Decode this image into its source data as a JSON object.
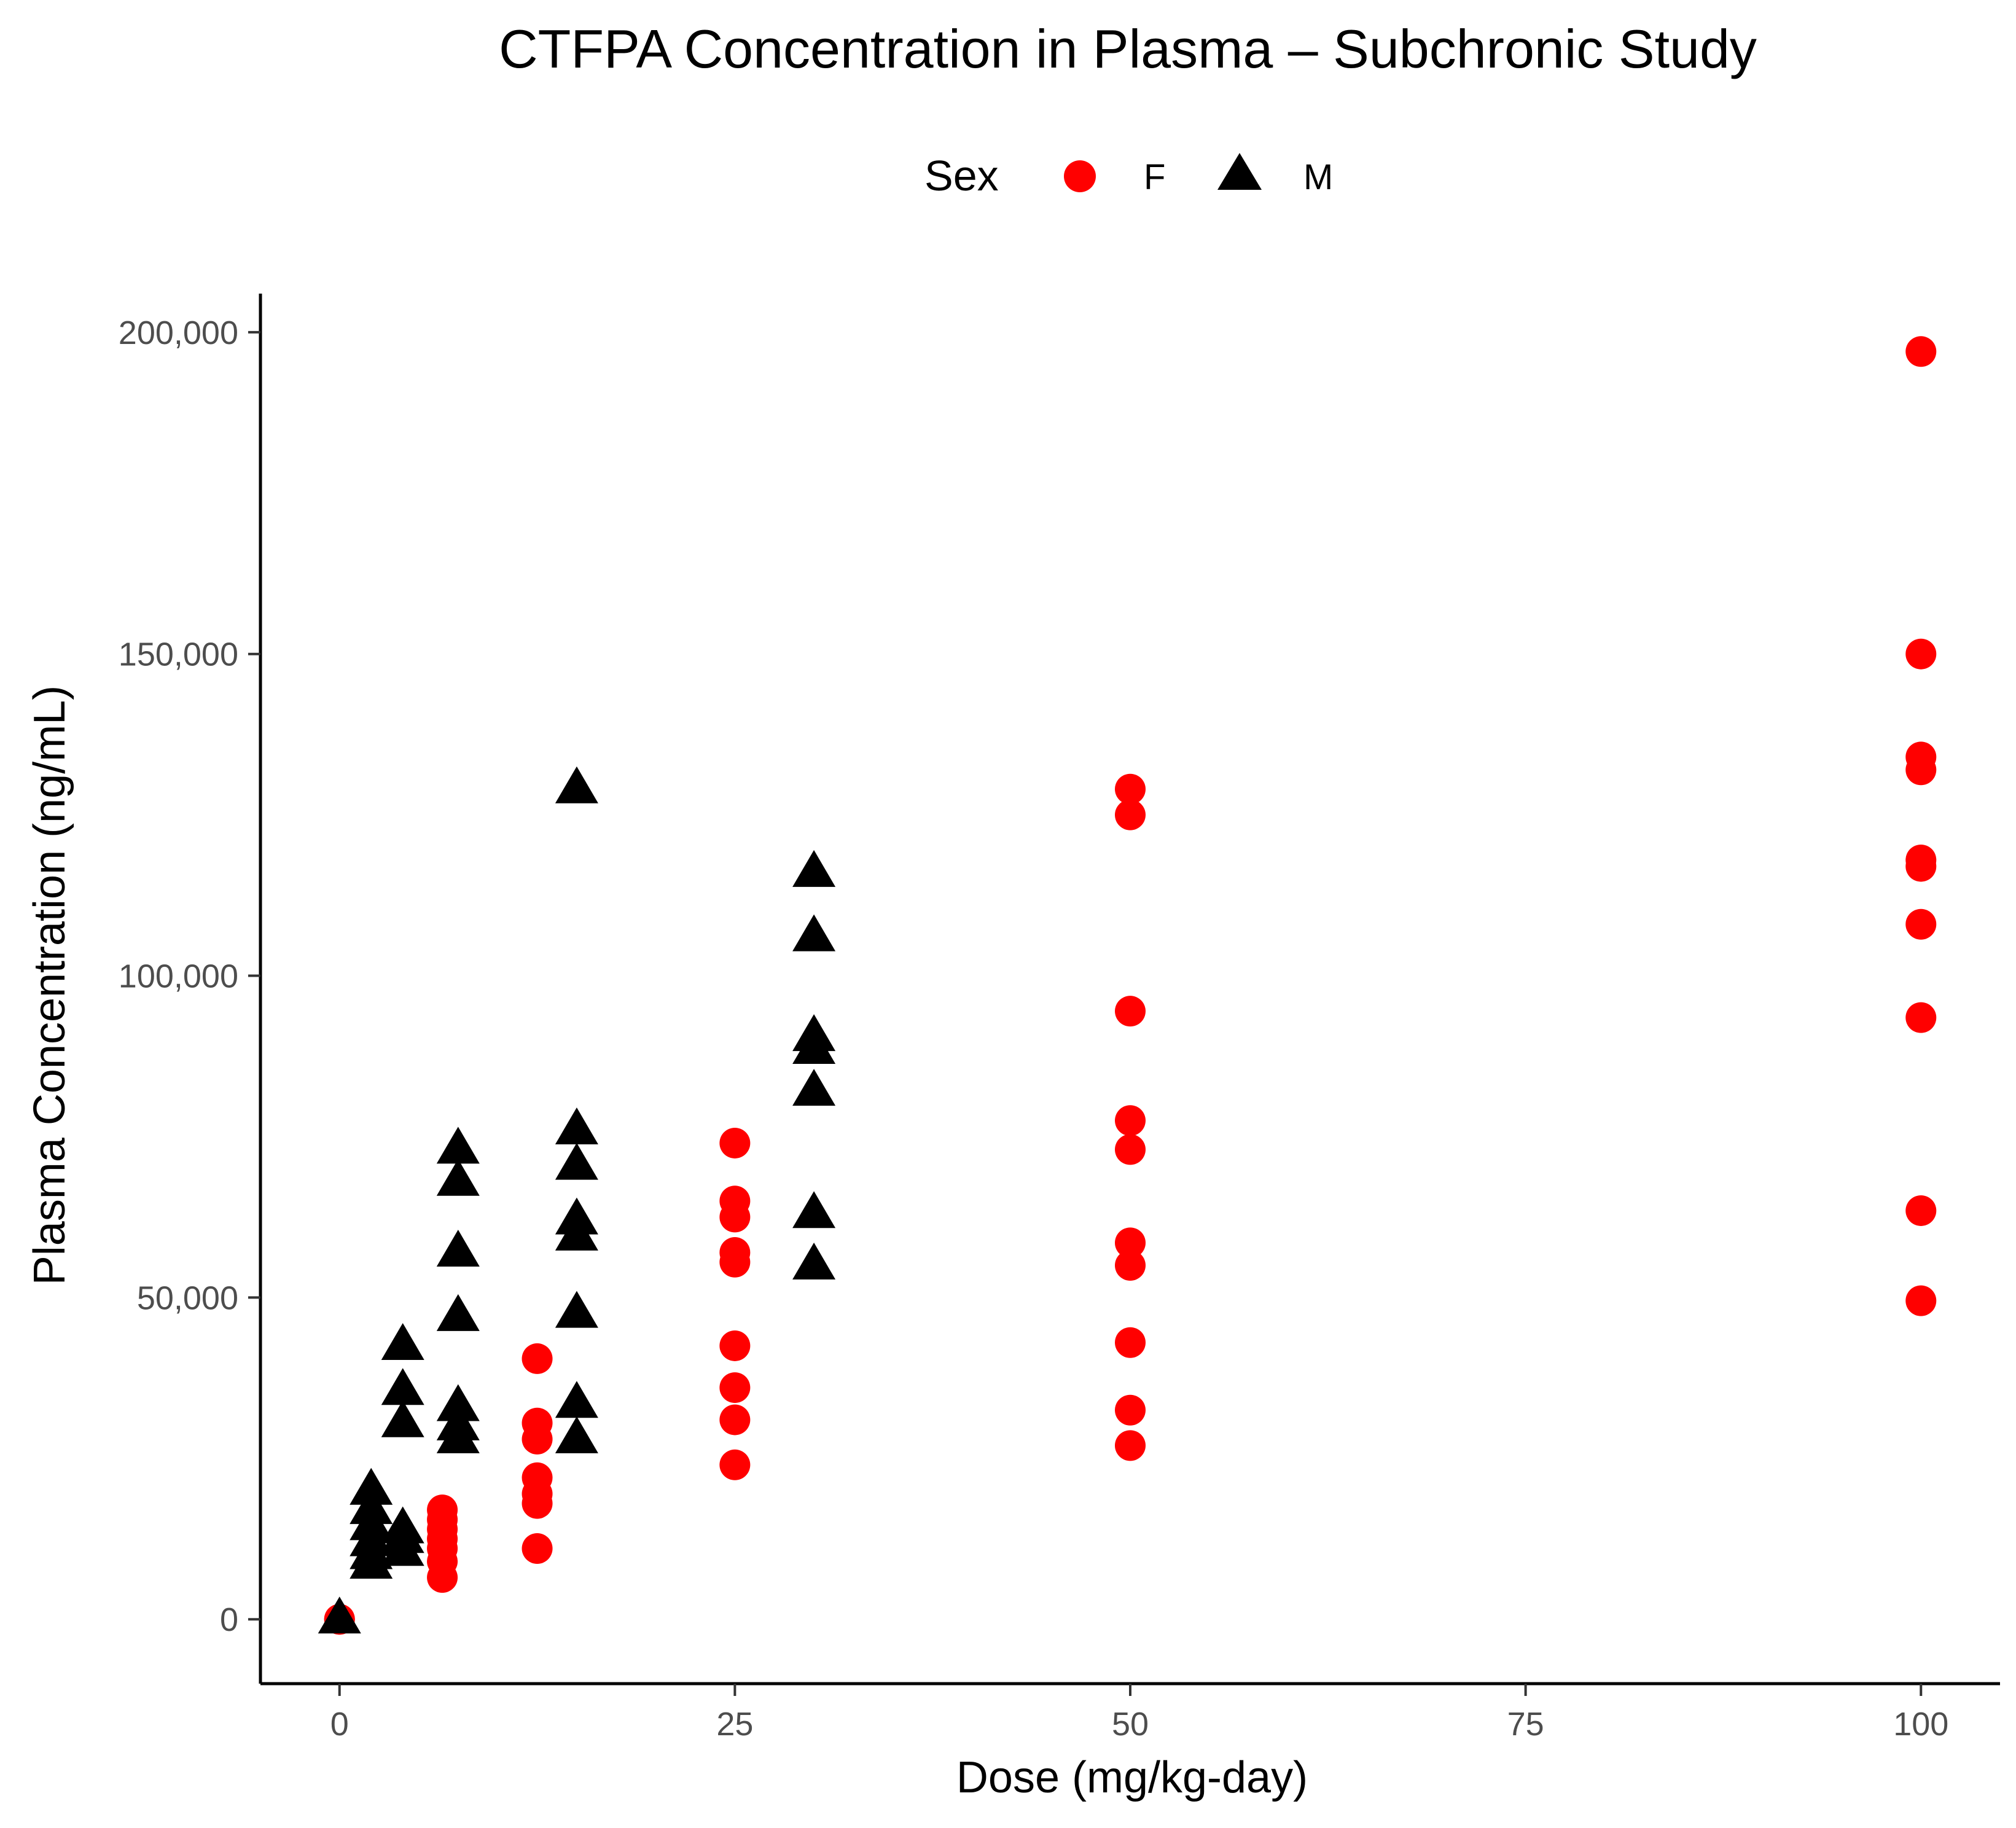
{
  "chart_data": {
    "type": "scatter",
    "title": "CTFPA Concentration in Plasma – Subchronic Study",
    "xlabel": "Dose (mg/kg-day)",
    "ylabel": "Plasma Concentration (ng/mL)",
    "xlim": [
      -5,
      105
    ],
    "ylim": [
      -10000,
      206000
    ],
    "x_ticks": [
      0,
      25,
      50,
      75,
      100
    ],
    "x_tick_labels": [
      "0",
      "25",
      "50",
      "75",
      "100"
    ],
    "y_ticks": [
      0,
      50000,
      100000,
      150000,
      200000
    ],
    "y_tick_labels": [
      "0",
      "50,000",
      "100,000",
      "150,000",
      "200,000"
    ],
    "grid": false,
    "legend": {
      "title": "Sex",
      "position": "top",
      "entries": [
        {
          "label": "F",
          "shape": "circle",
          "color": "#ff0000"
        },
        {
          "label": "M",
          "shape": "triangle",
          "color": "#000000"
        }
      ]
    },
    "series": [
      {
        "name": "F",
        "shape": "circle",
        "color": "#ff0000",
        "points": [
          [
            0,
            0
          ],
          [
            0,
            0
          ],
          [
            6.5,
            17000
          ],
          [
            6.5,
            15500
          ],
          [
            6.5,
            14000
          ],
          [
            6.5,
            12500
          ],
          [
            6.5,
            11000
          ],
          [
            6.5,
            9000
          ],
          [
            6.5,
            6500
          ],
          [
            12.5,
            40500
          ],
          [
            12.5,
            30500
          ],
          [
            12.5,
            28000
          ],
          [
            12.5,
            22000
          ],
          [
            12.5,
            19500
          ],
          [
            12.5,
            18000
          ],
          [
            12.5,
            11000
          ],
          [
            25,
            74000
          ],
          [
            25,
            65000
          ],
          [
            25,
            62500
          ],
          [
            25,
            57000
          ],
          [
            25,
            55500
          ],
          [
            25,
            42500
          ],
          [
            25,
            36000
          ],
          [
            25,
            31000
          ],
          [
            25,
            24000
          ],
          [
            50,
            129000
          ],
          [
            50,
            125000
          ],
          [
            50,
            94500
          ],
          [
            50,
            77500
          ],
          [
            50,
            73000
          ],
          [
            50,
            58500
          ],
          [
            50,
            55000
          ],
          [
            50,
            43000
          ],
          [
            50,
            32500
          ],
          [
            50,
            27000
          ],
          [
            100,
            197000
          ],
          [
            100,
            150000
          ],
          [
            100,
            134000
          ],
          [
            100,
            132000
          ],
          [
            100,
            118000
          ],
          [
            100,
            117000
          ],
          [
            100,
            108000
          ],
          [
            100,
            93500
          ],
          [
            100,
            63500
          ],
          [
            100,
            49500
          ]
        ]
      },
      {
        "name": "M",
        "shape": "triangle",
        "color": "#000000",
        "points": [
          [
            0,
            0
          ],
          [
            2,
            20000
          ],
          [
            2,
            17000
          ],
          [
            2,
            14500
          ],
          [
            2,
            12000
          ],
          [
            2,
            10000
          ],
          [
            2,
            8500
          ],
          [
            4,
            42500
          ],
          [
            4,
            35500
          ],
          [
            4,
            30500
          ],
          [
            4,
            14000
          ],
          [
            4,
            12500
          ],
          [
            4,
            10500
          ],
          [
            7.5,
            73000
          ],
          [
            7.5,
            68000
          ],
          [
            7.5,
            57000
          ],
          [
            7.5,
            47000
          ],
          [
            7.5,
            33000
          ],
          [
            7.5,
            30000
          ],
          [
            7.5,
            28000
          ],
          [
            15,
            129000
          ],
          [
            15,
            76000
          ],
          [
            15,
            70500
          ],
          [
            15,
            62000
          ],
          [
            15,
            59500
          ],
          [
            15,
            47500
          ],
          [
            15,
            33500
          ],
          [
            15,
            28000
          ],
          [
            30,
            116000
          ],
          [
            30,
            106000
          ],
          [
            30,
            90500
          ],
          [
            30,
            88500
          ],
          [
            30,
            82000
          ],
          [
            30,
            63000
          ],
          [
            30,
            55000
          ]
        ]
      }
    ]
  }
}
